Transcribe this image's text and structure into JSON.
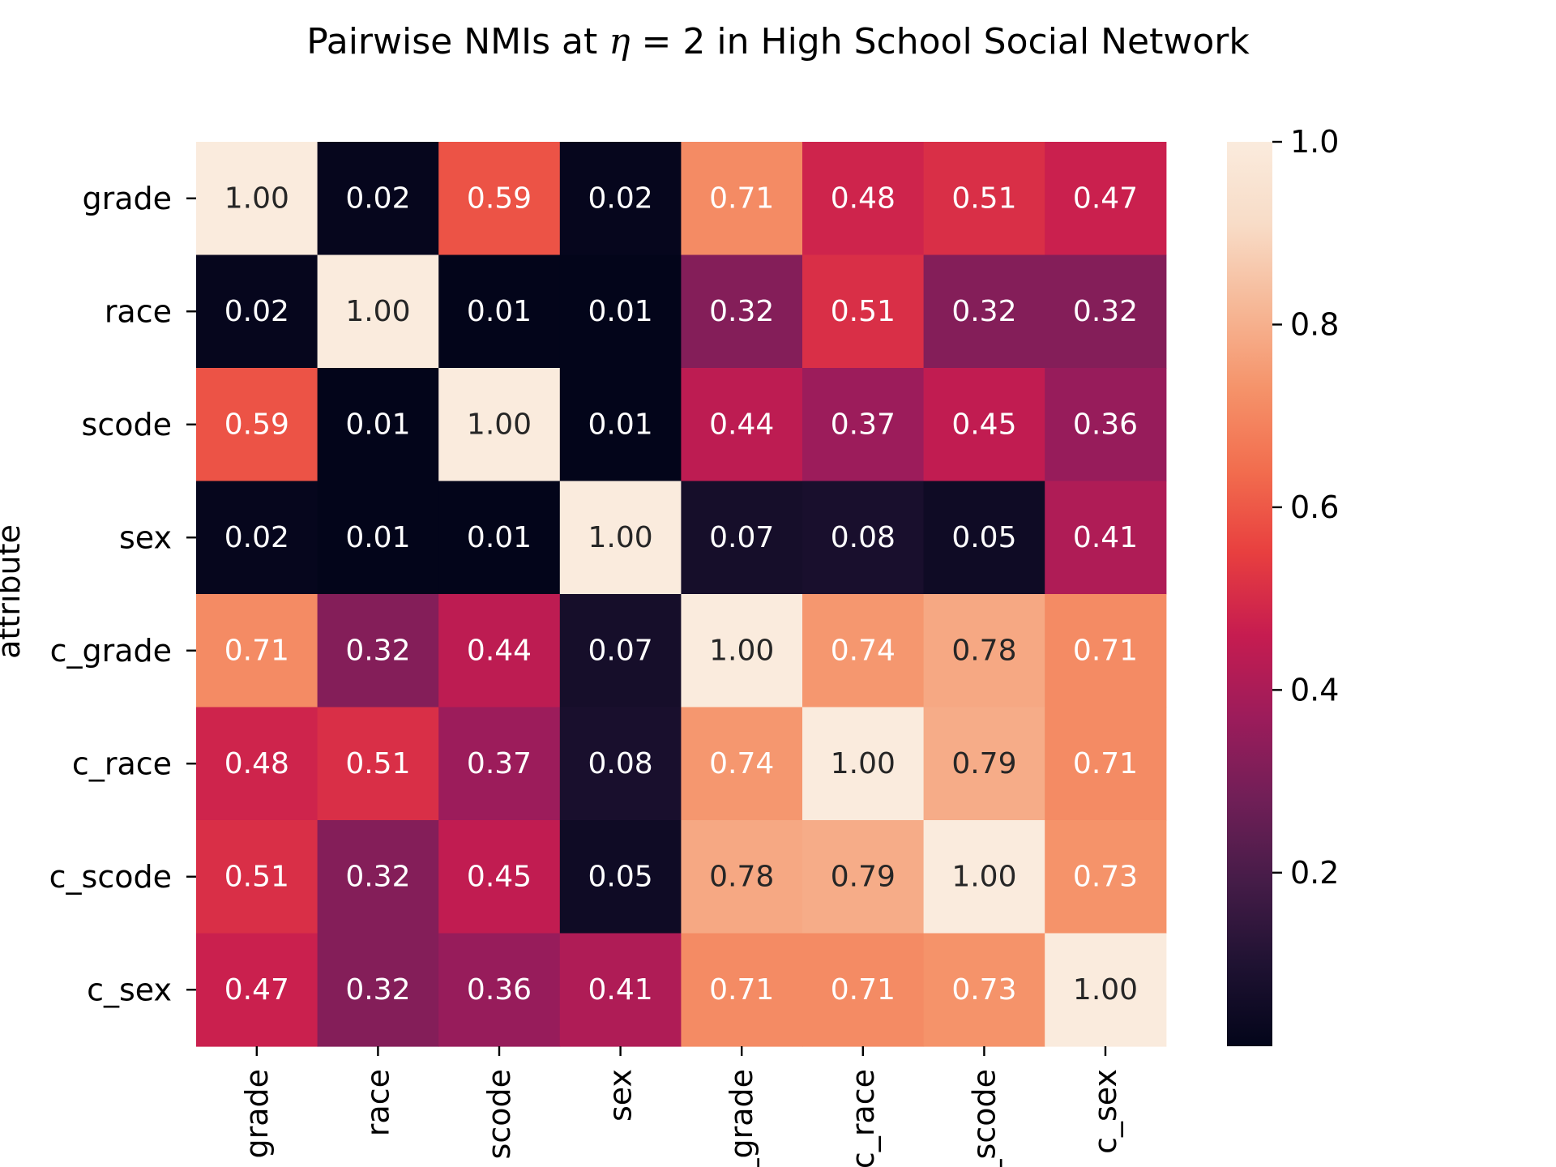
{
  "chart_data": {
    "type": "heatmap",
    "title_prefix": "Pairwise NMIs at ",
    "title_symbol": "η",
    "title_suffix": " = 2 in High School Social Network",
    "ylabel": "attribute",
    "xlabel": "",
    "row_labels": [
      "grade",
      "race",
      "scode",
      "sex",
      "c_grade",
      "c_race",
      "c_scode",
      "c_sex"
    ],
    "col_labels": [
      "grade",
      "race",
      "scode",
      "sex",
      "c_grade",
      "c_race",
      "c_scode",
      "c_sex"
    ],
    "values": [
      [
        1.0,
        0.02,
        0.59,
        0.02,
        0.71,
        0.48,
        0.51,
        0.47
      ],
      [
        0.02,
        1.0,
        0.01,
        0.01,
        0.32,
        0.51,
        0.32,
        0.32
      ],
      [
        0.59,
        0.01,
        1.0,
        0.01,
        0.44,
        0.37,
        0.45,
        0.36
      ],
      [
        0.02,
        0.01,
        0.01,
        1.0,
        0.07,
        0.08,
        0.05,
        0.41
      ],
      [
        0.71,
        0.32,
        0.44,
        0.07,
        1.0,
        0.74,
        0.78,
        0.71
      ],
      [
        0.48,
        0.51,
        0.37,
        0.08,
        0.74,
        1.0,
        0.79,
        0.71
      ],
      [
        0.51,
        0.32,
        0.45,
        0.05,
        0.78,
        0.79,
        1.0,
        0.73
      ],
      [
        0.47,
        0.32,
        0.36,
        0.41,
        0.71,
        0.71,
        0.73,
        1.0
      ]
    ],
    "value_format": "2 decimals",
    "colormap": "rocket",
    "colorbar": {
      "min": 0.01,
      "max": 1.0,
      "ticks": [
        0.2,
        0.4,
        0.6,
        0.8,
        1.0
      ],
      "tick_labels": [
        "0.2",
        "0.4",
        "0.6",
        "0.8",
        "1.0"
      ],
      "placement": "right"
    },
    "colormap_stops": [
      "#03051a",
      "#1f1232",
      "#451c48",
      "#701f57",
      "#9c1c5b",
      "#c61c50",
      "#e83f3f",
      "#f26d4e",
      "#f5936a",
      "#f6b897",
      "#f8dcc7",
      "#faebdd"
    ]
  }
}
